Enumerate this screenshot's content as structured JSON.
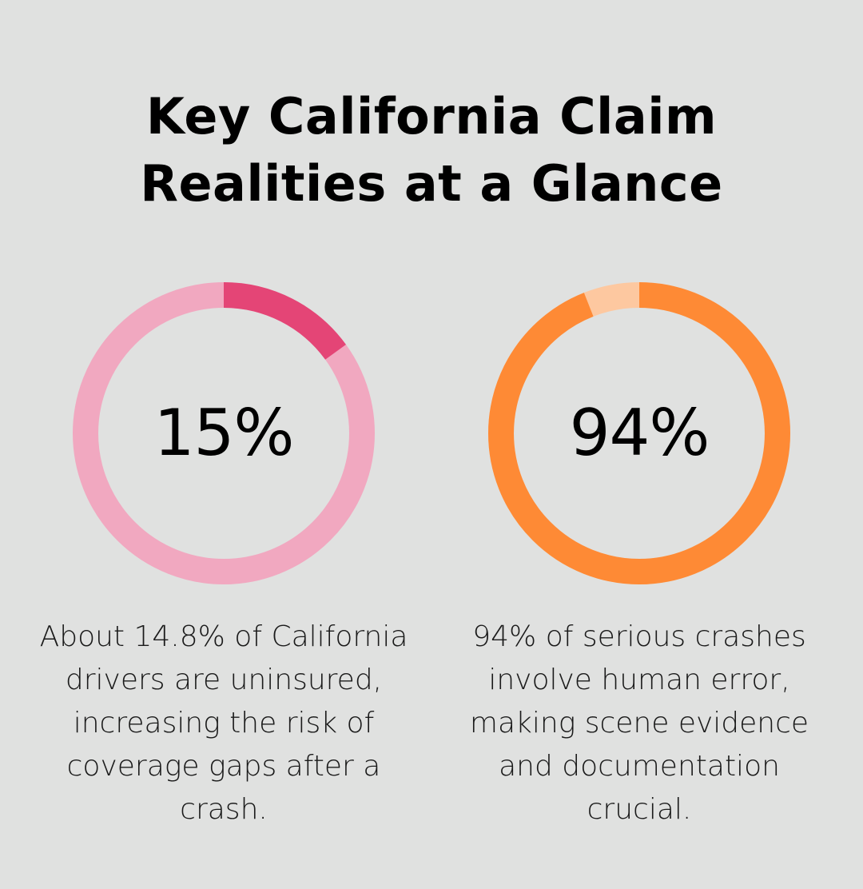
{
  "title": {
    "line1": "Key California Claim",
    "line2": "Realities at a Glance"
  },
  "chart_data": [
    {
      "type": "pie",
      "value": 15,
      "unit": "%",
      "center_label": "15%",
      "caption": "About 14.8% of California drivers are uninsured, increasing the risk of coverage gaps after a crash.",
      "colors": {
        "highlight": "#e44576",
        "remainder": "#f1a8c0"
      }
    },
    {
      "type": "pie",
      "value": 94,
      "unit": "%",
      "center_label": "94%",
      "caption": "94% of serious crashes involve human error, making scene evidence and documentation crucial.",
      "colors": {
        "highlight": "#fe8a35",
        "remainder": "#fdc8a0"
      }
    }
  ]
}
